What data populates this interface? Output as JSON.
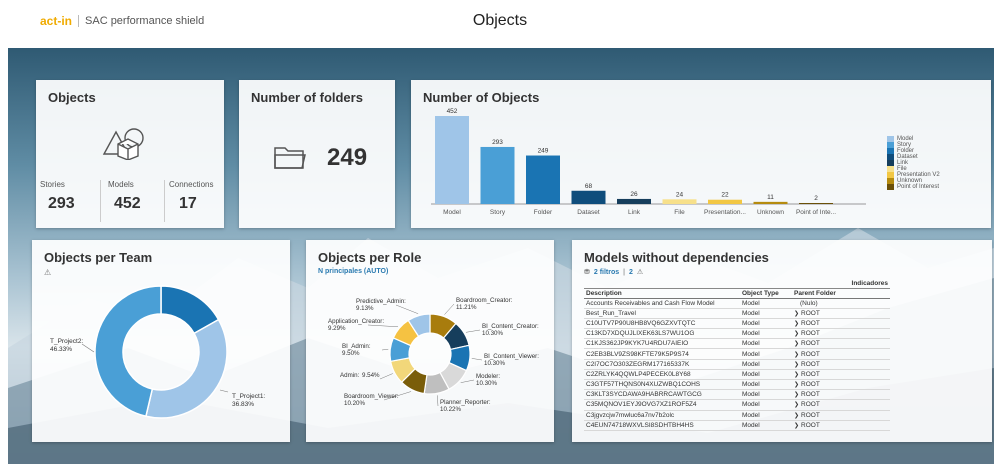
{
  "header": {
    "logo": "act-in",
    "product": "SAC performance shield",
    "title": "Objects"
  },
  "colors": {
    "model": "#9fc5e8",
    "story": "#4a9fd6",
    "folder": "#1a74b3",
    "dataset": "#0f4d7c",
    "link": "#163e5c",
    "file": "#f7e08a",
    "presentation": "#f2c744",
    "unknown": "#b58b0f",
    "poi": "#6b5008"
  },
  "objects_card": {
    "title": "Objects",
    "icon": "shapes-icon",
    "kpis": [
      {
        "label": "Stories",
        "value": "293"
      },
      {
        "label": "Models",
        "value": "452"
      },
      {
        "label": "Connections",
        "value": "17"
      }
    ]
  },
  "folders_card": {
    "title": "Number of folders",
    "icon": "folder-icon",
    "value": "249"
  },
  "chart_data": [
    {
      "type": "bar",
      "title": "Number of Objects",
      "categories": [
        "Model",
        "Story",
        "Folder",
        "Dataset",
        "Link",
        "File",
        "Presentation...",
        "Unknown",
        "Point of Inte..."
      ],
      "values": [
        452,
        293,
        249,
        68,
        26,
        24,
        22,
        11,
        2
      ],
      "legend": [
        "Model",
        "Story",
        "Folder",
        "Dataset",
        "Link",
        "File",
        "Presentation V2",
        "Unknown",
        "Point of Interest"
      ],
      "legend_position": "right",
      "ylim": [
        0,
        452
      ]
    },
    {
      "type": "pie",
      "title": "Objects per Team",
      "donut": true,
      "slices": [
        {
          "label": "T_Project2:",
          "pct_label": "46.33%",
          "value": 46.33
        },
        {
          "label": "T_Project1:",
          "pct_label": "36.83%",
          "value": 36.83
        },
        {
          "label": "",
          "pct_label": "",
          "value": 16.84
        }
      ]
    },
    {
      "type": "pie",
      "title": "Objects per Role",
      "subtitle": "N principales (AUTO)",
      "donut": true,
      "slices": [
        {
          "label": "Boardroom_Creator:",
          "pct_label": "11.21%",
          "value": 11.21
        },
        {
          "label": "BI_Content_Creator:",
          "pct_label": "10.30%",
          "value": 10.3
        },
        {
          "label": "BI_Content_Viewer:",
          "pct_label": "10.30%",
          "value": 10.3
        },
        {
          "label": "Modeler:",
          "pct_label": "10.30%",
          "value": 10.3
        },
        {
          "label": "Planner_Reporter:",
          "pct_label": "10.22%",
          "value": 10.22
        },
        {
          "label": "Boardroom_Viewer:",
          "pct_label": "10.20%",
          "value": 10.2
        },
        {
          "label": "Admin:",
          "pct_label": "9.54%",
          "value": 9.54
        },
        {
          "label": "BI_Admin:",
          "pct_label": "9.50%",
          "value": 9.5
        },
        {
          "label": "Application_Creator:",
          "pct_label": "9.29%",
          "value": 9.29
        },
        {
          "label": "Predictive_Admin:",
          "pct_label": "9.13%",
          "value": 9.13
        }
      ]
    }
  ],
  "team_card": {
    "title": "Objects per Team"
  },
  "role_card": {
    "title": "Objects per Role",
    "filter": "N principales (AUTO)"
  },
  "models_card": {
    "title": "Models without dependencies",
    "filters_label": "2 filtros",
    "filters_count": "2",
    "indicators_header": "Indicadores",
    "columns": [
      "Description",
      "Object Type",
      "Parent Folder"
    ],
    "rows": [
      [
        "Accounts Receivables and Cash Flow Model",
        "Model",
        "(Nulo)"
      ],
      [
        "Best_Run_Travel",
        "Model",
        "ROOT"
      ],
      [
        "C10UTV7P90U8HB8VQ6GZXVTQTC",
        "Model",
        "ROOT"
      ],
      [
        "C13KD7XDQUJLIXEK63LS7WU1OG",
        "Model",
        "ROOT"
      ],
      [
        "C1KJS362JP9KYK7U4RDU7AIEIO",
        "Model",
        "ROOT"
      ],
      [
        "C2EB3BLV9ZS98KFTE79K5P9S74",
        "Model",
        "ROOT"
      ],
      [
        "C2I7OC7O303ZEGRM177165337K",
        "Model",
        "ROOT"
      ],
      [
        "C2ZRLYK4QQWLP4PECEK0L8Y68",
        "Model",
        "ROOT"
      ],
      [
        "C3GTF57THQNS0N4XUZWBQ1COHS",
        "Model",
        "ROOT"
      ],
      [
        "C3KLT3SYCDAWA9HABRRCAWTGCG",
        "Model",
        "ROOT"
      ],
      [
        "C35MQNOV1EYJ9OVG7XZ1ROF5Z4",
        "Model",
        "ROOT"
      ],
      [
        "C3jgvzcjw7mwluc6a7nv7b2olc",
        "Model",
        "ROOT"
      ],
      [
        "C4EUN74718WXVLSI8SDHTBH4HS",
        "Model",
        "ROOT"
      ]
    ]
  }
}
